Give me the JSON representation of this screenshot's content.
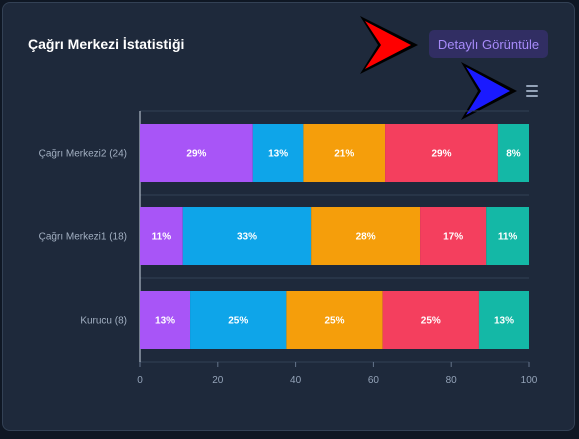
{
  "panel": {
    "title": "Çağrı Merkezi İstatistiği",
    "detail_button_label": "Detaylı Görüntüle",
    "menu_icon": "hamburger-menu-icon"
  },
  "annotations": {
    "red_arrow": {
      "color": "#ff0000",
      "icon": "arrow-right-icon"
    },
    "blue_arrow": {
      "color": "#1a1aff",
      "icon": "arrow-right-icon"
    }
  },
  "chart_data": {
    "type": "bar",
    "orientation": "horizontal",
    "stacked": true,
    "categories": [
      "Çağrı Merkezi2 (24)",
      "Çağrı Merkezi1 (18)",
      "Kurucu (8)"
    ],
    "series": [
      {
        "color": "#a855f7",
        "values": [
          29,
          11,
          13
        ],
        "labels": [
          "29%",
          "11%",
          "13%"
        ]
      },
      {
        "color": "#0ea5e9",
        "values": [
          13,
          33,
          25
        ],
        "labels": [
          "13%",
          "33%",
          "25%"
        ]
      },
      {
        "color": "#f59e0b",
        "values": [
          21,
          28,
          25
        ],
        "labels": [
          "21%",
          "28%",
          "25%"
        ]
      },
      {
        "color": "#f43f5e",
        "values": [
          29,
          17,
          25
        ],
        "labels": [
          "29%",
          "17%",
          "25%"
        ]
      },
      {
        "color": "#14b8a6",
        "values": [
          8,
          11,
          13
        ],
        "labels": [
          "8%",
          "11%",
          "13%"
        ]
      }
    ],
    "xlim": [
      0,
      100
    ],
    "xticks": [
      "0",
      "20",
      "40",
      "60",
      "80",
      "100"
    ],
    "grid": false,
    "legend": "none"
  }
}
